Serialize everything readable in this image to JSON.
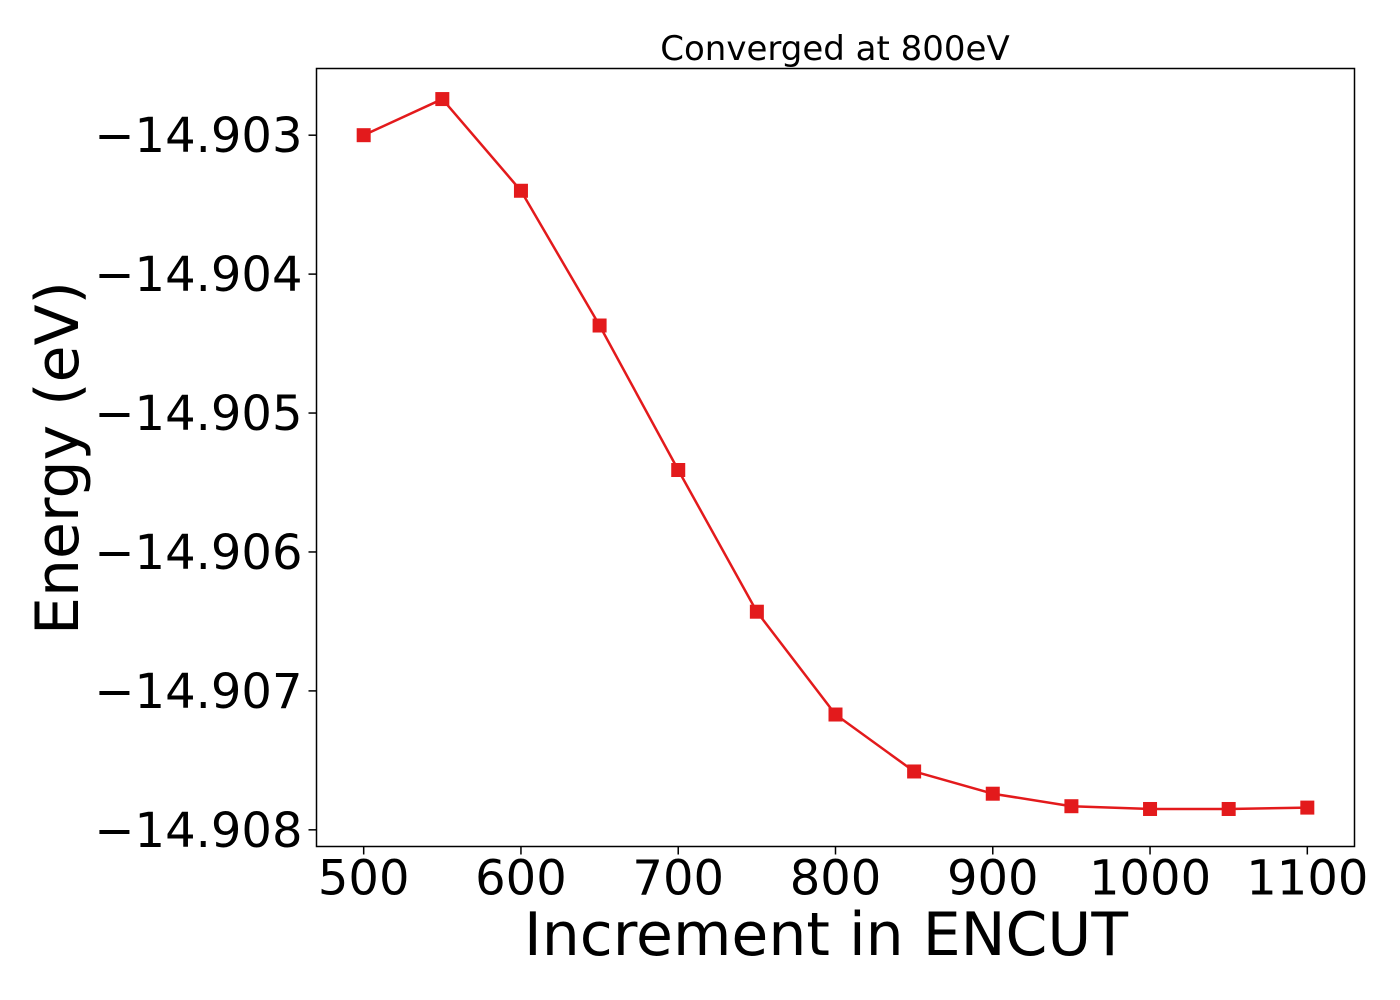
{
  "chart_data": {
    "type": "line",
    "title": "Converged at 800eV",
    "xlabel": "Increment in ENCUT",
    "ylabel": "Energy (eV)",
    "xlim": [
      470,
      1130
    ],
    "ylim": [
      -14.90812,
      -14.90252
    ],
    "x_ticks": [
      500,
      600,
      700,
      800,
      900,
      1000,
      1100
    ],
    "x_tick_labels": [
      "500",
      "600",
      "700",
      "800",
      "900",
      "1000",
      "1100"
    ],
    "y_ticks": [
      -14.903,
      -14.904,
      -14.905,
      -14.906,
      -14.907,
      -14.908
    ],
    "y_tick_labels": [
      "−14.903",
      "−14.904",
      "−14.905",
      "−14.906",
      "−14.907",
      "−14.908"
    ],
    "grid": false,
    "series": [
      {
        "color": "#e31a1c",
        "marker": "square",
        "x": [
          500,
          550,
          600,
          650,
          700,
          750,
          800,
          850,
          900,
          950,
          1000,
          1050,
          1100
        ],
        "y": [
          -14.903,
          -14.90274,
          -14.9034,
          -14.90437,
          -14.90541,
          -14.90643,
          -14.90717,
          -14.90758,
          -14.90774,
          -14.90783,
          -14.90785,
          -14.90785,
          -14.90784
        ]
      }
    ]
  }
}
